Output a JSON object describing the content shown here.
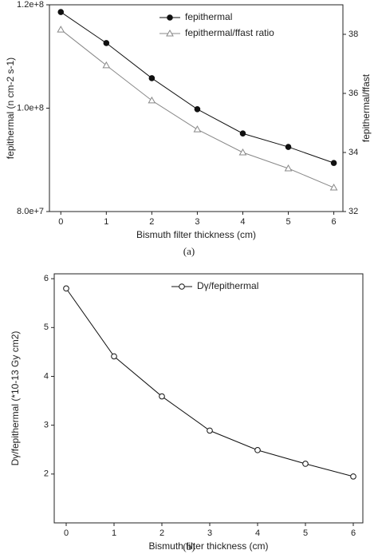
{
  "chart_data": [
    {
      "type": "line",
      "caption": "(a)",
      "x_label": "Bismuth filter thickness (cm)",
      "y_label": "fepithermal (n cm-2 s-1)",
      "y2_label": "fepithermal/ffast",
      "x": [
        0,
        1,
        2,
        3,
        4,
        5,
        6
      ],
      "xlim": [
        -0.25,
        6.2
      ],
      "xticks": [
        0,
        1,
        2,
        3,
        4,
        5,
        6
      ],
      "ylim": [
        80000000,
        120000000
      ],
      "yticks": [
        {
          "value": 80000000,
          "label": "8.0e+7"
        },
        {
          "value": 100000000,
          "label": "1.0e+8"
        },
        {
          "value": 120000000,
          "label": "1.2e+8"
        }
      ],
      "y2lim": [
        32,
        39
      ],
      "y2ticks": [
        32,
        34,
        36,
        38
      ],
      "legend": "upper right",
      "series": [
        {
          "name": "fepithermal",
          "color": "#111111",
          "marker": "filled-circle",
          "values": [
            118600000,
            112600000,
            105800000,
            99800000,
            95100000,
            92500000,
            89400000
          ]
        },
        {
          "name": "fepithermal/ffast ratio",
          "color": "#888888",
          "marker": "open-triangle",
          "axis": "y2",
          "values": [
            38.16,
            36.95,
            35.76,
            34.78,
            34.0,
            33.46,
            32.81
          ]
        }
      ]
    },
    {
      "type": "line",
      "caption": "(b)",
      "x_label": "Bismuth filter thickness (cm)",
      "y_label": "Dγ/fepithermal (*10-13 Gy cm2)",
      "x": [
        0,
        1,
        2,
        3,
        4,
        5,
        6
      ],
      "xlim": [
        -0.25,
        6.2
      ],
      "xticks": [
        0,
        1,
        2,
        3,
        4,
        5,
        6
      ],
      "ylim": [
        1.0,
        6.1
      ],
      "yticks": [
        2,
        3,
        4,
        5,
        6
      ],
      "legend": "upper right",
      "series": [
        {
          "name": "Dγ/fepithermal",
          "color": "#111111",
          "marker": "open-circle",
          "values": [
            5.8,
            4.41,
            3.59,
            2.89,
            2.49,
            2.21,
            1.95
          ]
        }
      ]
    }
  ]
}
